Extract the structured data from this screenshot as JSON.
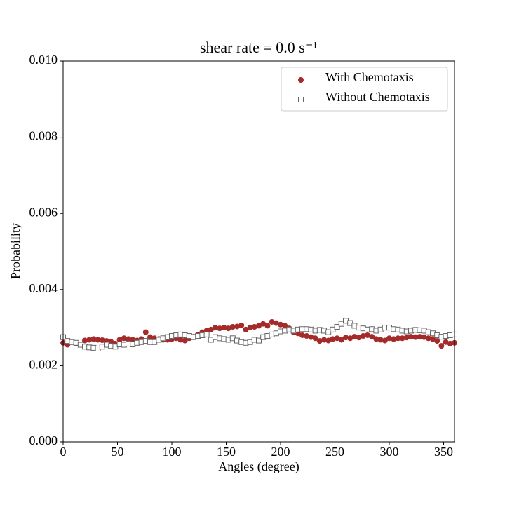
{
  "chart_data": {
    "type": "scatter",
    "title": "shear rate = 0.0 s⁻¹",
    "x_label": "Angles (degree)",
    "y_label": "Probability",
    "x": [
      0,
      4,
      8,
      12,
      16,
      20,
      24,
      28,
      32,
      36,
      40,
      44,
      48,
      52,
      56,
      60,
      64,
      68,
      72,
      76,
      80,
      84,
      88,
      92,
      96,
      100,
      104,
      108,
      112,
      116,
      120,
      124,
      128,
      132,
      136,
      140,
      144,
      148,
      152,
      156,
      160,
      164,
      168,
      172,
      176,
      180,
      184,
      188,
      192,
      196,
      200,
      204,
      208,
      212,
      216,
      220,
      224,
      228,
      232,
      236,
      240,
      244,
      248,
      252,
      256,
      260,
      264,
      268,
      272,
      276,
      280,
      284,
      288,
      292,
      296,
      300,
      304,
      308,
      312,
      316,
      320,
      324,
      328,
      332,
      336,
      340,
      344,
      348,
      352,
      356,
      360
    ],
    "series": [
      {
        "name": "With Chemotaxis",
        "color": "#a52a2a",
        "marker": "circle",
        "values": [
          0.0026,
          0.00255,
          0.00262,
          0.00258,
          0.00255,
          0.00266,
          0.00268,
          0.0027,
          0.00268,
          0.00267,
          0.00265,
          0.00263,
          0.00258,
          0.00268,
          0.00272,
          0.0027,
          0.00268,
          0.00266,
          0.0027,
          0.00288,
          0.00275,
          0.00272,
          0.0027,
          0.00268,
          0.00268,
          0.0027,
          0.00272,
          0.00268,
          0.00266,
          0.00272,
          0.00276,
          0.00282,
          0.00288,
          0.00292,
          0.00295,
          0.003,
          0.00298,
          0.003,
          0.00298,
          0.00302,
          0.00303,
          0.00306,
          0.00295,
          0.003,
          0.00302,
          0.00305,
          0.0031,
          0.00305,
          0.00315,
          0.00312,
          0.00308,
          0.00305,
          0.00298,
          0.00288,
          0.00285,
          0.0028,
          0.00278,
          0.00275,
          0.00272,
          0.00265,
          0.00268,
          0.00266,
          0.0027,
          0.00272,
          0.00268,
          0.00274,
          0.00272,
          0.00276,
          0.00274,
          0.00278,
          0.0028,
          0.00276,
          0.0027,
          0.00268,
          0.00266,
          0.00272,
          0.0027,
          0.00272,
          0.00272,
          0.00274,
          0.00276,
          0.00275,
          0.00276,
          0.00275,
          0.00272,
          0.0027,
          0.00265,
          0.00252,
          0.00262,
          0.00258,
          0.0026
        ]
      },
      {
        "name": "Without Chemotaxis",
        "color": "#666666",
        "marker": "square",
        "values": [
          0.00275,
          0.00265,
          0.00262,
          0.0026,
          0.00255,
          0.0025,
          0.00248,
          0.00247,
          0.00245,
          0.0025,
          0.00255,
          0.00252,
          0.0025,
          0.00256,
          0.00255,
          0.00258,
          0.00256,
          0.0026,
          0.00262,
          0.00265,
          0.00262,
          0.00262,
          0.00268,
          0.00272,
          0.00275,
          0.00278,
          0.0028,
          0.00282,
          0.0028,
          0.00278,
          0.00275,
          0.00278,
          0.0028,
          0.00282,
          0.00268,
          0.00275,
          0.00272,
          0.0027,
          0.00268,
          0.00272,
          0.00266,
          0.00262,
          0.0026,
          0.00262,
          0.00268,
          0.00266,
          0.00275,
          0.00278,
          0.00282,
          0.00285,
          0.0029,
          0.00292,
          0.00295,
          0.00292,
          0.00295,
          0.00296,
          0.00296,
          0.00295,
          0.00292,
          0.00294,
          0.00292,
          0.00288,
          0.00295,
          0.00302,
          0.0031,
          0.00318,
          0.00312,
          0.00305,
          0.003,
          0.00298,
          0.00295,
          0.00296,
          0.00292,
          0.00295,
          0.003,
          0.003,
          0.00296,
          0.00295,
          0.00292,
          0.0029,
          0.00292,
          0.00294,
          0.00293,
          0.00292,
          0.00288,
          0.00285,
          0.0028,
          0.00276,
          0.00278,
          0.0028,
          0.00282
        ]
      }
    ],
    "xlim": [
      0,
      360
    ],
    "xticks": [
      0,
      50,
      100,
      150,
      200,
      250,
      300,
      350
    ],
    "ylim": [
      0,
      0.01
    ],
    "yticks": [
      {
        "value": 0,
        "label": "0.000"
      },
      {
        "value": 0.002,
        "label": "0.002"
      },
      {
        "value": 0.004,
        "label": "0.004"
      },
      {
        "value": 0.006,
        "label": "0.006"
      },
      {
        "value": 0.008,
        "label": "0.008"
      },
      {
        "value": 0.01,
        "label": "0.010"
      }
    ],
    "legend": "upper right"
  }
}
